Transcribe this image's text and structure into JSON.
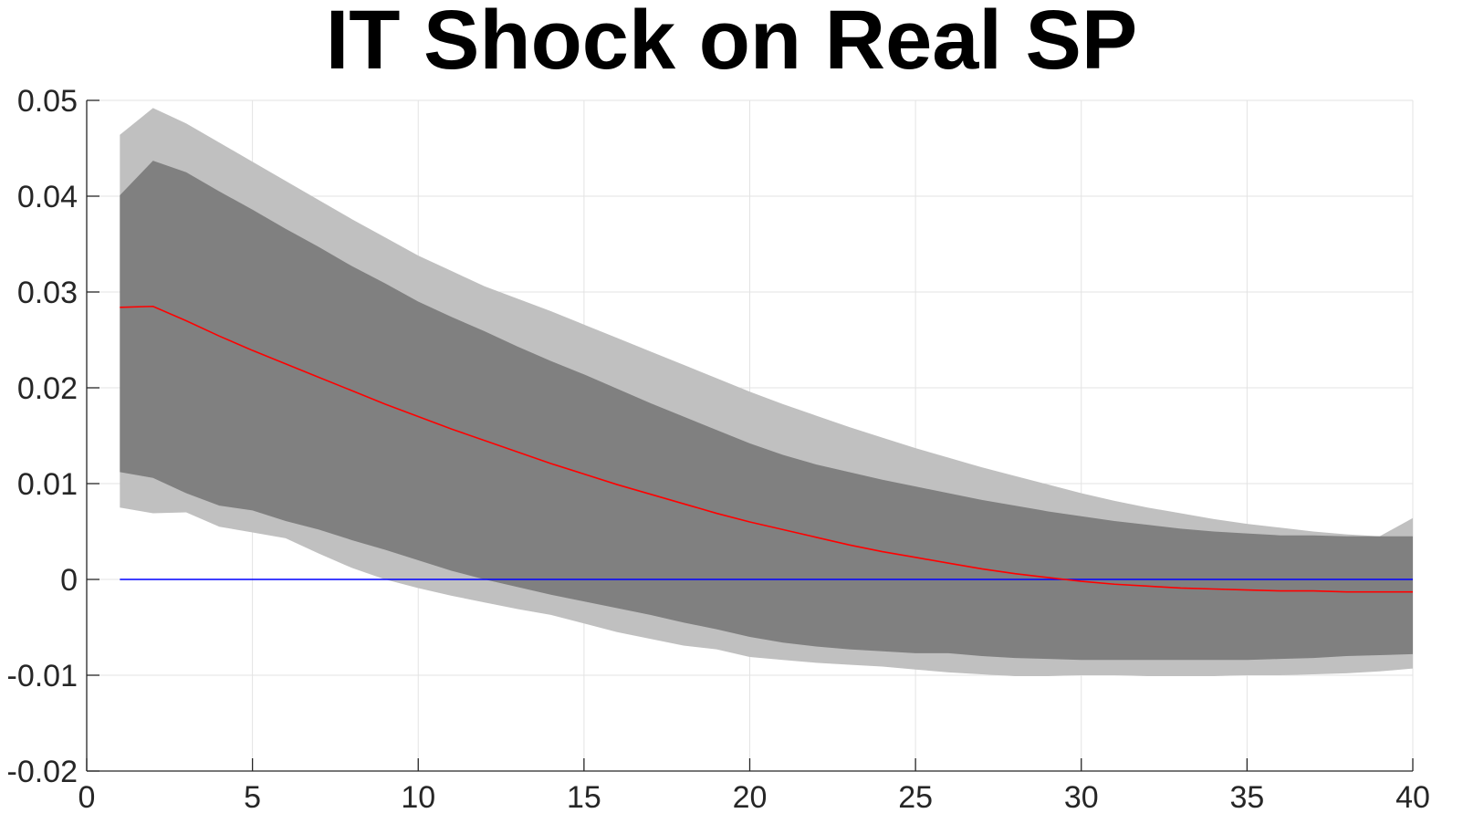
{
  "chart_data": {
    "type": "area",
    "title": "IT Shock on Real SP",
    "xlabel": "",
    "ylabel": "",
    "xlim": [
      0,
      40
    ],
    "ylim": [
      -0.02,
      0.05
    ],
    "grid": true,
    "xticks": [
      0,
      5,
      10,
      15,
      20,
      25,
      30,
      35,
      40
    ],
    "xtick_labels": [
      "0",
      "5",
      "10",
      "15",
      "20",
      "25",
      "30",
      "35",
      "40"
    ],
    "yticks": [
      -0.02,
      -0.01,
      0,
      0.01,
      0.02,
      0.03,
      0.04,
      0.05
    ],
    "ytick_labels": [
      "-0.02",
      "-0.01",
      "0",
      "0.01",
      "0.02",
      "0.03",
      "0.04",
      "0.05"
    ],
    "x": [
      1,
      2,
      3,
      4,
      5,
      6,
      7,
      8,
      9,
      10,
      11,
      12,
      13,
      14,
      15,
      16,
      17,
      18,
      19,
      20,
      21,
      22,
      23,
      24,
      25,
      26,
      27,
      28,
      29,
      30,
      31,
      32,
      33,
      34,
      35,
      36,
      37,
      38,
      39,
      40
    ],
    "bands": [
      {
        "color": "#c0c0c0",
        "upper": [
          0.0464,
          0.0492,
          0.0476,
          0.0456,
          0.0436,
          0.0416,
          0.0396,
          0.0376,
          0.0357,
          0.0338,
          0.0322,
          0.0306,
          0.0293,
          0.028,
          0.0266,
          0.0252,
          0.0238,
          0.0224,
          0.021,
          0.0196,
          0.0183,
          0.0171,
          0.0159,
          0.0148,
          0.0137,
          0.0127,
          0.0117,
          0.0108,
          0.0099,
          0.009,
          0.0082,
          0.0075,
          0.0069,
          0.0063,
          0.0058,
          0.0054,
          0.005,
          0.0047,
          0.0045,
          0.0064
        ],
        "lower": [
          0.0075,
          0.0069,
          0.007,
          0.0055,
          0.0049,
          0.0043,
          0.0027,
          0.0012,
          0.0,
          -0.0009,
          -0.0017,
          -0.0024,
          -0.0031,
          -0.0037,
          -0.0046,
          -0.0055,
          -0.0062,
          -0.0069,
          -0.0073,
          -0.0081,
          -0.0084,
          -0.0087,
          -0.0089,
          -0.0091,
          -0.0094,
          -0.0097,
          -0.0099,
          -0.0101,
          -0.0101,
          -0.01,
          -0.01,
          -0.0101,
          -0.0101,
          -0.0101,
          -0.01,
          -0.01,
          -0.0099,
          -0.0098,
          -0.0096,
          -0.0093
        ]
      },
      {
        "color": "#808080",
        "upper": [
          0.0401,
          0.0437,
          0.0425,
          0.0405,
          0.0386,
          0.0366,
          0.0347,
          0.0327,
          0.0309,
          0.029,
          0.0274,
          0.0259,
          0.0243,
          0.0228,
          0.0214,
          0.0199,
          0.0184,
          0.017,
          0.0156,
          0.0142,
          0.013,
          0.012,
          0.0112,
          0.0104,
          0.0097,
          0.009,
          0.0083,
          0.0077,
          0.0071,
          0.0066,
          0.0061,
          0.0057,
          0.0053,
          0.005,
          0.0048,
          0.0046,
          0.0046,
          0.0045,
          0.0045,
          0.0045
        ],
        "lower": [
          0.0112,
          0.0106,
          0.009,
          0.0077,
          0.0072,
          0.0061,
          0.0052,
          0.0041,
          0.0031,
          0.002,
          0.0009,
          0.0,
          -0.0008,
          -0.0016,
          -0.0023,
          -0.003,
          -0.0037,
          -0.0045,
          -0.0052,
          -0.006,
          -0.0066,
          -0.007,
          -0.0073,
          -0.0075,
          -0.0077,
          -0.0077,
          -0.008,
          -0.0082,
          -0.0083,
          -0.0084,
          -0.0084,
          -0.0084,
          -0.0084,
          -0.0084,
          -0.0084,
          -0.0083,
          -0.0082,
          -0.008,
          -0.0079,
          -0.0078
        ]
      }
    ],
    "series": [
      {
        "color": "#ff0000",
        "values": [
          0.0284,
          0.0285,
          0.027,
          0.0254,
          0.0239,
          0.0225,
          0.0211,
          0.0197,
          0.0183,
          0.017,
          0.0157,
          0.0145,
          0.0133,
          0.0121,
          0.011,
          0.0099,
          0.0089,
          0.0079,
          0.0069,
          0.006,
          0.0052,
          0.0044,
          0.0036,
          0.0029,
          0.0023,
          0.0017,
          0.0011,
          0.0006,
          0.0002,
          -0.0002,
          -0.0005,
          -0.0007,
          -0.0009,
          -0.001,
          -0.0011,
          -0.0012,
          -0.0012,
          -0.0013,
          -0.0013,
          -0.0013
        ]
      },
      {
        "color": "#0000ff",
        "values": [
          0,
          0,
          0,
          0,
          0,
          0,
          0,
          0,
          0,
          0,
          0,
          0,
          0,
          0,
          0,
          0,
          0,
          0,
          0,
          0,
          0,
          0,
          0,
          0,
          0,
          0,
          0,
          0,
          0,
          0,
          0,
          0,
          0,
          0,
          0,
          0,
          0,
          0,
          0,
          0
        ]
      }
    ],
    "grid_color": "#e3e3e3",
    "axis_color": "#262626"
  }
}
